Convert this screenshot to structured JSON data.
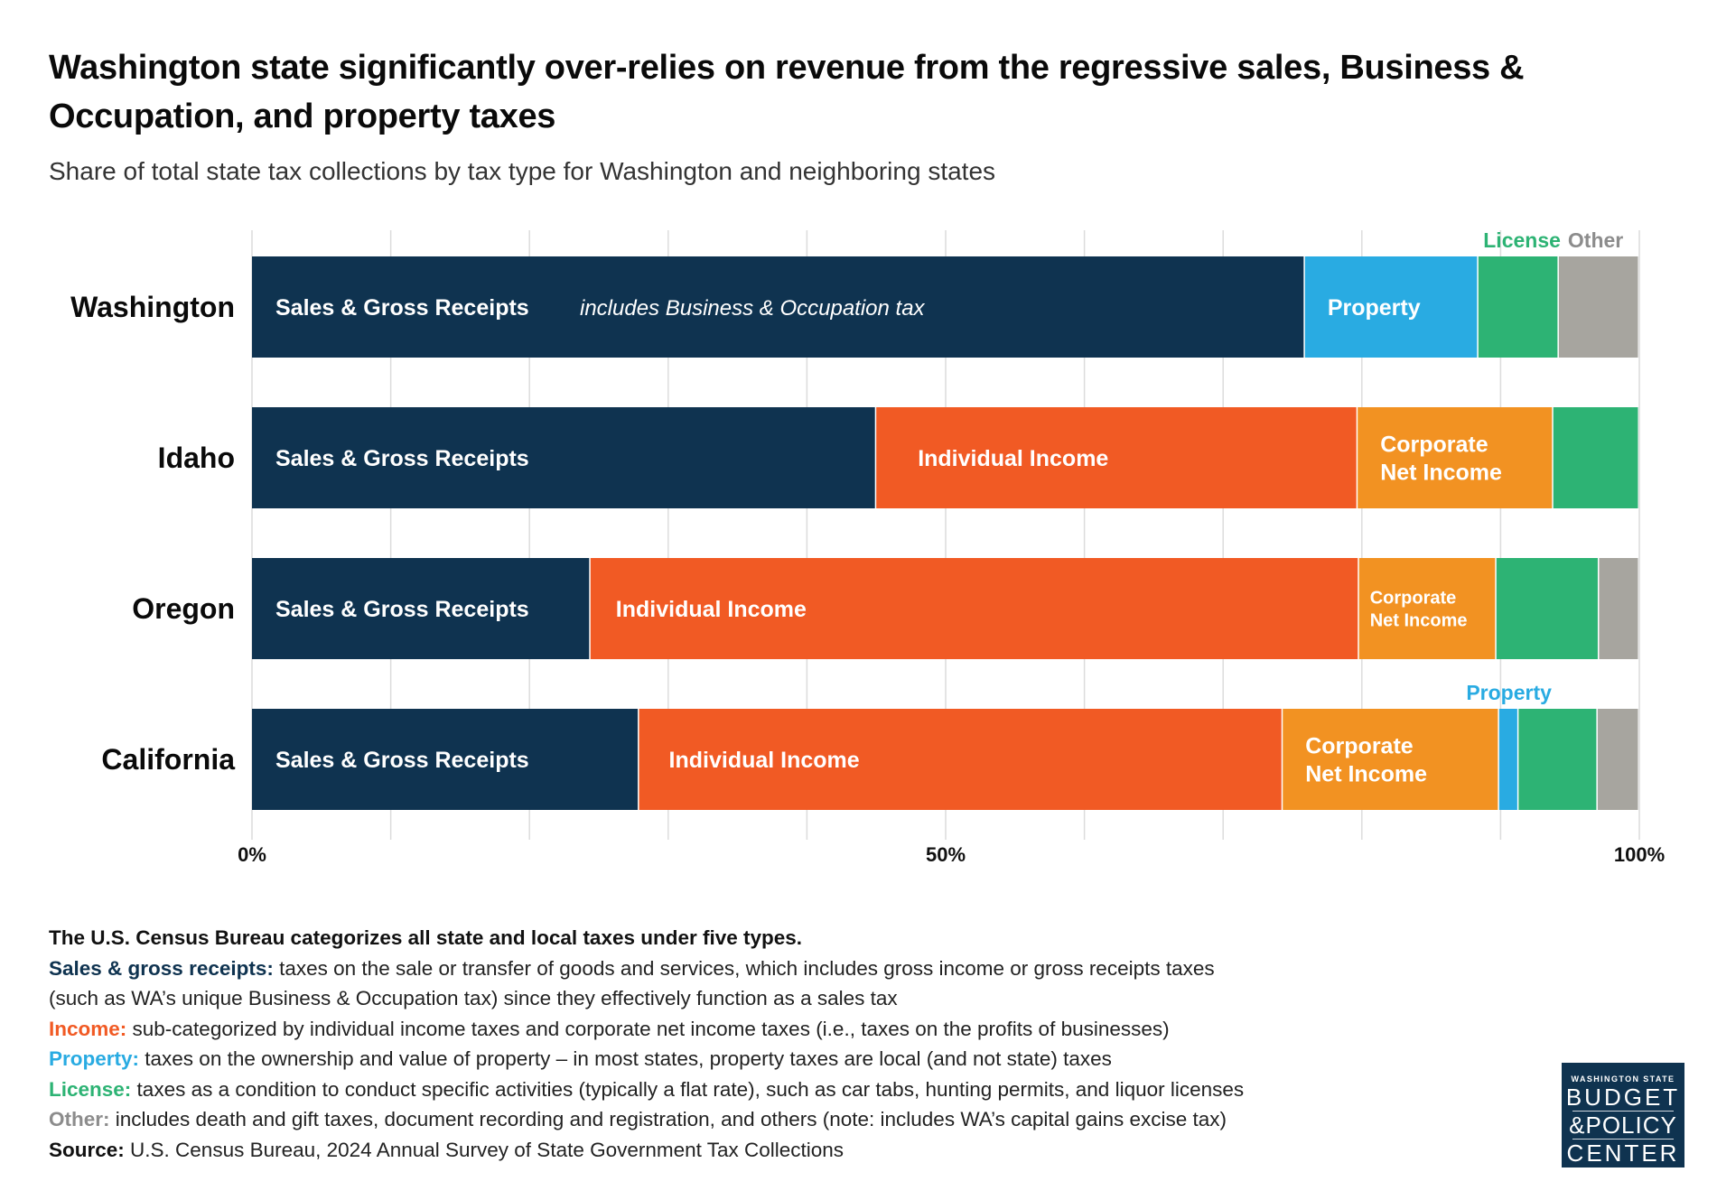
{
  "title": "Washington state significantly over-relies on revenue from the regressive sales, Business & Occupation, and property taxes",
  "subtitle": "Share of total state tax collections by tax type for Washington and neighboring states",
  "colors": {
    "Sales & Gross Receipts": "#0f3350",
    "Property": "#29abe2",
    "Individual Income": "#f15a24",
    "Corporate Net Income": "#f29222",
    "License": "#2db374",
    "Other": "#a7a59f"
  },
  "chart_data": {
    "type": "bar",
    "orientation": "horizontal",
    "stacked": true,
    "title": "Washington state significantly over-relies on revenue from the regressive sales, Business & Occupation, and property taxes",
    "subtitle": "Share of total state tax collections by tax type for Washington and neighboring states",
    "xlabel": "",
    "ylabel": "",
    "xlim": [
      0,
      100
    ],
    "unit": "%",
    "grid": "vertical, every 10%",
    "x_ticks": [
      "0%",
      "50%",
      "100%"
    ],
    "x_tick_values": [
      0,
      50,
      100
    ],
    "categories": [
      "Washington",
      "Idaho",
      "Oregon",
      "California"
    ],
    "series": [
      {
        "name": "Sales & Gross Receipts",
        "values": [
          75.9,
          45.0,
          24.4,
          27.9
        ]
      },
      {
        "name": "Individual Income",
        "values": [
          0,
          34.7,
          55.4,
          46.4
        ]
      },
      {
        "name": "Corporate Net Income",
        "values": [
          0,
          14.1,
          9.9,
          15.6
        ]
      },
      {
        "name": "Property",
        "values": [
          12.5,
          0,
          0,
          1.4
        ]
      },
      {
        "name": "License",
        "values": [
          5.8,
          6.2,
          7.4,
          5.7
        ]
      },
      {
        "name": "Other",
        "values": [
          5.8,
          0,
          2.9,
          3.0
        ]
      }
    ],
    "segment_labels": {
      "Washington": {
        "Sales & Gross Receipts": "Sales & Gross Receipts",
        "Property": "Property"
      },
      "Idaho": {
        "Sales & Gross Receipts": "Sales & Gross Receipts",
        "Individual Income": "Individual Income",
        "Corporate Net Income": "Corporate|Net Income"
      },
      "Oregon": {
        "Sales & Gross Receipts": "Sales & Gross Receipts",
        "Individual Income": "Individual Income",
        "Corporate Net Income": "Corporate|Net Income"
      },
      "California": {
        "Sales & Gross Receipts": "Sales & Gross Receipts",
        "Individual Income": "Individual Income",
        "Corporate Net Income": "Corporate|Net Income"
      }
    },
    "annotations": [
      {
        "text": "includes Business & Occupation tax",
        "row": "Washington",
        "series": "Sales & Gross Receipts",
        "style": "italic"
      },
      {
        "text": "License",
        "row": "Washington",
        "series": "License",
        "position": "above"
      },
      {
        "text": "Other",
        "row": "Washington",
        "series": "Other",
        "position": "above"
      },
      {
        "text": "Property",
        "row": "California",
        "series": "Property",
        "position": "above"
      }
    ]
  },
  "footnotes": {
    "heading": "The U.S. Census Bureau categorizes all state and local taxes under five types.",
    "items": [
      {
        "key": "Sales & gross receipts:",
        "text": " taxes on the sale or transfer of goods and services, which includes gross income or gross receipts taxes",
        "color": "#0f3350"
      },
      {
        "key": "",
        "text": "(such as WA’s unique Business & Occupation tax) since they effectively function as a sales tax",
        "color": "#0f3350"
      },
      {
        "key": "Income:",
        "text": " sub-categorized by individual income taxes and corporate net income taxes (i.e., taxes on the profits of businesses)",
        "color": "#f15a24"
      },
      {
        "key": "Property:",
        "text": " taxes on the ownership and value of property – in most states, property taxes are local (and not state) taxes",
        "color": "#29abe2"
      },
      {
        "key": "License:",
        "text": " taxes as a condition to conduct specific activities (typically a flat rate), such as car tabs, hunting permits, and liquor licenses",
        "color": "#2db374"
      },
      {
        "key": "Other:",
        "text": " includes death and gift taxes, document recording and registration, and others (note: includes WA’s capital gains excise tax)",
        "color": "#8c8c8c"
      },
      {
        "key": "Source:",
        "text": " U.S. Census Bureau, 2024 Annual Survey of State Government Tax Collections",
        "color": "#111111"
      }
    ]
  },
  "logo": {
    "line1": "WASHINGTON STATE",
    "line2": "BUDGET",
    "line3": "&POLICY",
    "line4": "CENTER"
  }
}
